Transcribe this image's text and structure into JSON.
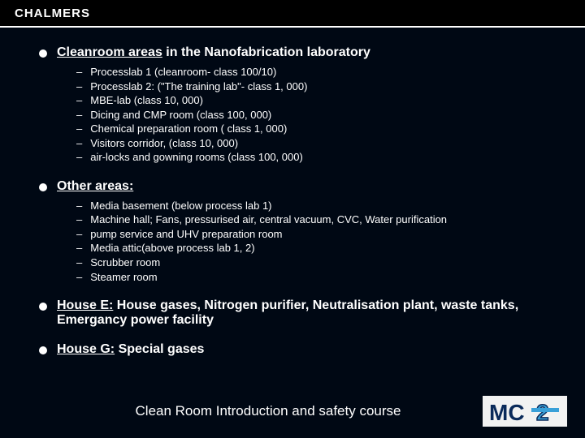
{
  "header": {
    "logo_text": "CHALMERS"
  },
  "sections": [
    {
      "title_prefix": "",
      "title_underlined": "Cleanroom areas",
      "title_suffix": " in the Nanofabrication laboratory",
      "items": [
        "Processlab 1 (cleanroom- class 100/10)",
        "Processlab 2: (\"The training lab\"- class 1, 000)",
        "MBE-lab (class  10, 000)",
        "Dicing and CMP room (class  100, 000)",
        "Chemical preparation room ( class 1, 000)",
        "Visitors corridor, (class 10, 000)",
        "air-locks and gowning rooms (class 100, 000)"
      ]
    },
    {
      "title_prefix": "",
      "title_underlined": "Other areas:",
      "title_suffix": "",
      "items": [
        "Media basement (below process lab 1)",
        "Machine hall; Fans, pressurised air, central vacuum, CVC, Water purification",
        " pump service and UHV preparation room",
        "Media attic(above process lab 1, 2)",
        "Scrubber room",
        "Steamer room"
      ]
    },
    {
      "title_prefix": "",
      "title_underlined": "House E:",
      "title_suffix": " House gases, Nitrogen purifier, Neutralisation plant, waste tanks, Emergancy power facility",
      "items": []
    },
    {
      "title_prefix": "",
      "title_underlined": "House G:",
      "title_suffix": " Special gases",
      "items": []
    }
  ],
  "footer": {
    "title": "Clean Room Introduction and safety course",
    "logo_text_1": "MC",
    "logo_text_2": "2",
    "logo_colors": {
      "mc": "#0a2a5a",
      "two_fill": "#3aa0d8",
      "two_stroke": "#0a2a5a",
      "bg": "#f2f2f2"
    }
  },
  "colors": {
    "page_bg": "#000814",
    "header_bg": "#000000",
    "header_border": "#ffffff",
    "text": "#ffffff",
    "bullet": "#ffffff"
  }
}
